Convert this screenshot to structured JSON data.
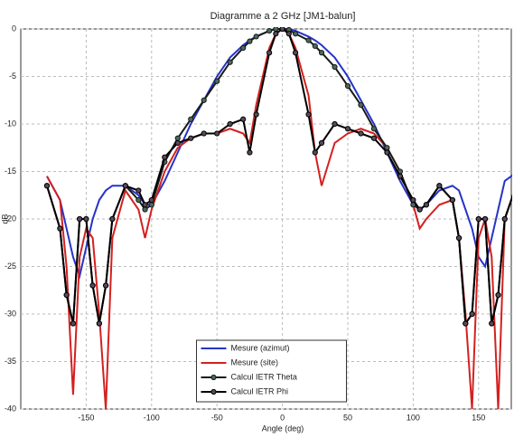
{
  "chart_data": {
    "type": "line",
    "title": "Diagramme a 2 GHz [JM1-balun]",
    "xlabel": "Angle (deg)",
    "ylabel": "dB",
    "x": [
      -180,
      -170,
      -165,
      -160,
      -155,
      -150,
      -145,
      -140,
      -135,
      -130,
      -120,
      -110,
      -105,
      -100,
      -90,
      -80,
      -70,
      -60,
      -50,
      -40,
      -30,
      -25,
      -20,
      -10,
      -5,
      0,
      5,
      10,
      20,
      25,
      30,
      40,
      50,
      60,
      70,
      80,
      90,
      100,
      105,
      110,
      120,
      130,
      135,
      140,
      145,
      150,
      155,
      160,
      165,
      170,
      180
    ],
    "series": [
      {
        "name": "Mesure (azimut)",
        "color": "#2633c9",
        "markers": false,
        "values": [
          -15.5,
          -18,
          -21,
          -24,
          -26,
          -23,
          -20,
          -18,
          -17,
          -16.5,
          -16.5,
          -17.5,
          -18.5,
          -18.5,
          -16,
          -13,
          -10,
          -7.5,
          -5,
          -3,
          -1.7,
          -1.2,
          -0.8,
          -0.2,
          0,
          0,
          0,
          -0.2,
          -0.8,
          -1.2,
          -1.7,
          -3,
          -5,
          -7.5,
          -10,
          -13,
          -16,
          -18.5,
          -19,
          -18.5,
          -17,
          -16.5,
          -17,
          -19,
          -21,
          -24,
          -25,
          -22,
          -19,
          -16,
          -15
        ]
      },
      {
        "name": "Mesure (site)",
        "color": "#d42020",
        "markers": false,
        "values": [
          -15.5,
          -18,
          -25,
          -38.5,
          -24,
          -21,
          -22,
          -30,
          -40,
          -22,
          -17,
          -19,
          -22,
          -19,
          -15,
          -12.5,
          -11.5,
          -11,
          -11,
          -10.5,
          -11,
          -12,
          -8,
          -2,
          -0.5,
          0,
          -0.5,
          -2,
          -7,
          -13,
          -16.5,
          -12,
          -11,
          -10.5,
          -11,
          -12.5,
          -15,
          -18.5,
          -21,
          -20,
          -18.5,
          -18,
          -22,
          -30,
          -40,
          -22,
          -20,
          -24,
          -40,
          -20,
          -16
        ]
      },
      {
        "name": "Calcul IETR Theta",
        "color": "#1a1a1a",
        "markers": true,
        "marker_color": "#4a6a5a",
        "values": [
          -16.5,
          -21,
          -28,
          -31,
          -20,
          -20,
          -27,
          -31,
          -27,
          -20,
          -16.5,
          -18,
          -19,
          -18.5,
          -14,
          -11.5,
          -9.5,
          -7.5,
          -5.5,
          -3.5,
          -2,
          -1.3,
          -0.8,
          -0.2,
          0,
          0,
          -0.1,
          -0.5,
          -1.2,
          -1.8,
          -2.5,
          -4,
          -6,
          -8,
          -10.5,
          -12.5,
          -15,
          -18.5,
          -19,
          -18.5,
          -16.5,
          -18,
          -22,
          -31,
          -30,
          -20,
          -20,
          -31,
          -28,
          -20,
          -16
        ]
      },
      {
        "name": "Calcul IETR Phi",
        "color": "#000000",
        "markers": true,
        "marker_color": "#5a4a5a",
        "values": [
          -16.5,
          -21,
          -28,
          -31,
          -20,
          -20,
          -27,
          -31,
          -27,
          -20,
          -16.5,
          -17,
          -18.5,
          -18,
          -13.5,
          -12,
          -11.5,
          -11,
          -11,
          -10,
          -9.5,
          -13,
          -9,
          -2.5,
          -0.5,
          0,
          -0.5,
          -2.5,
          -9,
          -13,
          -12,
          -10,
          -10.5,
          -11,
          -11.5,
          -13,
          -15.5,
          -18,
          -19,
          -18.5,
          -16.5,
          -18,
          -22,
          -31,
          -30,
          -20,
          -20,
          -31,
          -28,
          -20,
          -16
        ]
      }
    ],
    "xlim": [
      -200,
      175
    ],
    "ylim": [
      -40,
      0
    ],
    "xticks": [
      -150,
      -100,
      -50,
      0,
      50,
      100,
      150
    ],
    "yticks": [
      0,
      -5,
      -10,
      -15,
      -20,
      -25,
      -30,
      -35,
      -40
    ],
    "grid": true,
    "legend": "lower center"
  }
}
